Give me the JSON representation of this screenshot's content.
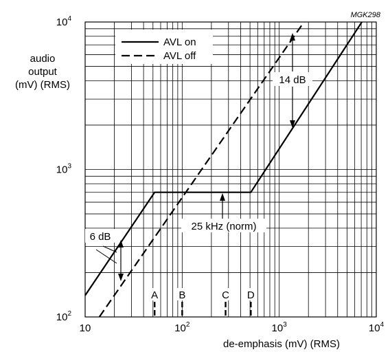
{
  "figure_id": "MGK298",
  "y_axis_label": [
    "audio",
    "output",
    "(mV) (RMS)"
  ],
  "x_axis_label": "de-emphasis (mV) (RMS)",
  "chart_data": {
    "type": "line",
    "title": "",
    "xlabel": "de-emphasis (mV) (RMS)",
    "ylabel": "audio output (mV) (RMS)",
    "xscale": "log",
    "yscale": "log",
    "xlim": [
      10,
      10000
    ],
    "ylim": [
      100,
      10000
    ],
    "grid": true,
    "legend_position": "top-left",
    "x_ticks": [
      {
        "base": "10",
        "exp": ""
      },
      {
        "base": "10",
        "exp": "2"
      },
      {
        "base": "10",
        "exp": "3"
      },
      {
        "base": "10",
        "exp": "4"
      }
    ],
    "y_ticks": [
      {
        "base": "10",
        "exp": "2"
      },
      {
        "base": "10",
        "exp": "3"
      },
      {
        "base": "10",
        "exp": "4"
      }
    ],
    "series": [
      {
        "name": "AVL on",
        "style": "solid",
        "x": [
          10,
          52,
          510,
          7100
        ],
        "y": [
          140,
          700,
          700,
          10000
        ]
      },
      {
        "name": "AVL off",
        "style": "dashed",
        "x": [
          14,
          1800
        ],
        "y": [
          100,
          10000
        ]
      }
    ],
    "markers": [
      {
        "label": "A",
        "x": 52
      },
      {
        "label": "B",
        "x": 100
      },
      {
        "label": "C",
        "x": 280
      },
      {
        "label": "D",
        "x": 510
      }
    ],
    "annotations": [
      {
        "text": "14 dB"
      },
      {
        "text": "25 kHz (norm)"
      },
      {
        "text": "6 dB"
      }
    ]
  }
}
